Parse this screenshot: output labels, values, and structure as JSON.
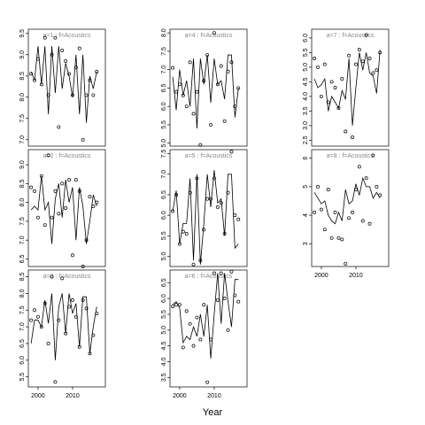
{
  "xlabel": "Year",
  "chart_data": [
    {
      "type": "line",
      "title": "a=1 : f=Acoustics",
      "x": [
        1998,
        1999,
        2000,
        2001,
        2002,
        2003,
        2004,
        2005,
        2006,
        2007,
        2008,
        2009,
        2010,
        2011,
        2012,
        2013,
        2014,
        2015,
        2016,
        2017
      ],
      "xlim": [
        1997.2,
        2019.5
      ],
      "ylim": [
        6.85,
        9.6
      ],
      "yticks": [
        {
          "value": 7,
          "label": "7.0"
        },
        7.5,
        {
          "value": 8,
          "label": "8.0"
        },
        8.5,
        {
          "value": 9,
          "label": "9.0"
        },
        9.5
      ],
      "series": [
        {
          "style": "points",
          "color": "#000000",
          "values": [
            8.55,
            8.4,
            8.9,
            8.3,
            9.4,
            8.05,
            9.0,
            9.4,
            7.3,
            9.1,
            8.85,
            8.55,
            8.05,
            8.7,
            9.15,
            7.0,
            8.05,
            8.4,
            8.05,
            8.6
          ]
        },
        {
          "style": "line",
          "color": "#000000",
          "values": [
            8.6,
            8.4,
            9.2,
            8.3,
            9.2,
            7.6,
            9.2,
            8.1,
            9.2,
            8.2,
            8.8,
            8.5,
            8.0,
            9.0,
            7.6,
            9.0,
            7.4,
            8.5,
            8.2,
            8.6
          ]
        }
      ]
    },
    {
      "type": "line",
      "title": "a=4 : f=Acoustics",
      "x": [
        1998,
        1999,
        2000,
        2001,
        2002,
        2003,
        2004,
        2005,
        2006,
        2007,
        2008,
        2009,
        2010,
        2011,
        2012,
        2013,
        2014,
        2015,
        2016,
        2017
      ],
      "xlim": [
        1997.2,
        2019.5
      ],
      "ylim": [
        4.92,
        8.1
      ],
      "yticks": [
        {
          "value": 5,
          "label": "5.0"
        },
        5.5,
        {
          "value": 6,
          "label": "6.0"
        },
        6.5,
        {
          "value": 7,
          "label": "7.0"
        },
        7.5,
        {
          "value": 8,
          "label": "8.0"
        }
      ],
      "series": [
        {
          "style": "points",
          "color": "#000000",
          "values": [
            7.05,
            6.4,
            6.6,
            6.3,
            6.0,
            7.2,
            5.8,
            6.4,
            4.95,
            6.7,
            7.4,
            5.5,
            8.0,
            6.6,
            7.1,
            5.6,
            6.95,
            7.2,
            6.0,
            6.5
          ]
        },
        {
          "style": "line",
          "color": "#000000",
          "values": [
            6.8,
            5.9,
            7.0,
            6.3,
            6.7,
            6.0,
            7.3,
            5.4,
            7.3,
            6.6,
            7.4,
            6.1,
            7.3,
            6.6,
            6.7,
            6.2,
            7.4,
            7.4,
            5.7,
            6.5
          ]
        }
      ]
    },
    {
      "type": "line",
      "title": "a=7 : f=Acoustics",
      "x": [
        1998,
        1999,
        2000,
        2001,
        2002,
        2003,
        2004,
        2005,
        2006,
        2007,
        2008,
        2009,
        2010,
        2011,
        2012,
        2013,
        2014,
        2015,
        2016,
        2017
      ],
      "xlim": [
        1997.2,
        2019.5
      ],
      "ylim": [
        2.3,
        6.3
      ],
      "yticks": [
        2.5,
        {
          "value": 3,
          "label": "3.0"
        },
        3.5,
        {
          "value": 4,
          "label": "4.0"
        },
        4.5,
        {
          "value": 5,
          "label": "5.0"
        },
        5.5,
        {
          "value": 6,
          "label": "6.0"
        }
      ],
      "series": [
        {
          "style": "points",
          "color": "#000000",
          "values": [
            5.3,
            5.0,
            4.0,
            5.1,
            3.8,
            4.5,
            4.3,
            3.6,
            4.6,
            2.8,
            5.4,
            2.6,
            5.1,
            5.6,
            5.2,
            6.1,
            5.3,
            4.8,
            4.9,
            5.5
          ]
        },
        {
          "style": "line",
          "color": "#000000",
          "values": [
            4.6,
            4.3,
            4.4,
            4.6,
            3.5,
            4.0,
            3.8,
            3.6,
            4.2,
            3.9,
            5.3,
            3.0,
            4.3,
            5.5,
            4.9,
            5.5,
            4.8,
            4.7,
            4.1,
            5.6
          ]
        }
      ]
    },
    {
      "type": "line",
      "title": "a=2 : f=Acoustics",
      "x": [
        1998,
        1999,
        2000,
        2001,
        2002,
        2003,
        2004,
        2005,
        2006,
        2007,
        2008,
        2009,
        2010,
        2011,
        2012,
        2013,
        2014,
        2015,
        2016,
        2017
      ],
      "xlim": [
        1997.2,
        2019.5
      ],
      "ylim": [
        6.3,
        9.4
      ],
      "yticks": [
        6.5,
        {
          "value": 7,
          "label": "7.0"
        },
        7.5,
        {
          "value": 8,
          "label": "8.0"
        },
        8.5,
        {
          "value": 9,
          "label": "9.0"
        }
      ],
      "series": [
        {
          "style": "points",
          "color": "#000000",
          "values": [
            8.4,
            8.3,
            7.6,
            8.7,
            7.4,
            9.25,
            7.6,
            8.3,
            7.7,
            8.5,
            7.85,
            8.6,
            6.6,
            8.6,
            8.3,
            6.3,
            7.0,
            8.15,
            7.9,
            8.0
          ]
        },
        {
          "style": "line",
          "color": "#000000",
          "values": [
            7.8,
            7.9,
            7.8,
            8.7,
            7.8,
            8.0,
            6.9,
            8.1,
            8.5,
            7.6,
            8.6,
            8.0,
            8.4,
            7.0,
            8.4,
            7.9,
            6.9,
            7.5,
            8.2,
            7.9
          ]
        }
      ]
    },
    {
      "type": "line",
      "title": "a=5 : f=Acoustics",
      "x": [
        1998,
        1999,
        2000,
        2001,
        2002,
        2003,
        2004,
        2005,
        2006,
        2007,
        2008,
        2009,
        2010,
        2011,
        2012,
        2013,
        2014,
        2015,
        2016,
        2017
      ],
      "xlim": [
        1997.2,
        2019.5
      ],
      "ylim": [
        4.75,
        7.6
      ],
      "yticks": [
        {
          "value": 5,
          "label": "5.0"
        },
        5.5,
        {
          "value": 6,
          "label": "6.0"
        },
        6.5,
        {
          "value": 7,
          "label": "7.0"
        },
        7.5
      ],
      "series": [
        {
          "style": "points",
          "color": "#000000",
          "values": [
            6.1,
            6.5,
            5.3,
            5.6,
            5.55,
            6.55,
            4.8,
            6.9,
            4.9,
            5.65,
            6.4,
            6.4,
            6.9,
            6.2,
            6.3,
            5.55,
            6.55,
            7.55,
            6.0,
            5.9
          ]
        },
        {
          "style": "line",
          "color": "#000000",
          "values": [
            6.1,
            6.6,
            5.3,
            5.8,
            5.8,
            6.9,
            4.9,
            7.0,
            4.8,
            5.8,
            7.0,
            6.2,
            7.1,
            6.3,
            6.4,
            5.5,
            7.0,
            7.0,
            5.2,
            5.3
          ]
        }
      ]
    },
    {
      "type": "line",
      "title": "a=8 : f=Acoustics",
      "x": [
        1998,
        1999,
        2000,
        2001,
        2002,
        2003,
        2004,
        2005,
        2006,
        2007,
        2008,
        2009,
        2010,
        2011,
        2012,
        2013,
        2014,
        2015,
        2016,
        2017
      ],
      "xlim": [
        1997.2,
        2019.5
      ],
      "ylim": [
        2.2,
        6.3
      ],
      "xticks": [
        2000,
        2010
      ],
      "yticks": [
        3,
        4,
        5,
        6
      ],
      "series": [
        {
          "style": "points",
          "color": "#000000",
          "values": [
            4.1,
            5.0,
            4.2,
            3.5,
            4.9,
            3.2,
            4.1,
            3.2,
            3.15,
            2.3,
            3.9,
            4.1,
            4.9,
            5.7,
            3.8,
            5.3,
            3.7,
            6.1,
            5.0,
            4.7
          ]
        },
        {
          "style": "line",
          "color": "#000000",
          "values": [
            4.8,
            4.6,
            4.4,
            4.5,
            4.0,
            3.8,
            3.7,
            4.1,
            3.8,
            4.9,
            4.4,
            4.5,
            5.1,
            4.7,
            5.3,
            5.0,
            5.0,
            4.6,
            4.8,
            4.6
          ]
        }
      ]
    },
    {
      "type": "line",
      "title": "a=3 : f=Acoustics",
      "x": [
        1998,
        1999,
        2000,
        2001,
        2002,
        2003,
        2004,
        2005,
        2006,
        2007,
        2008,
        2009,
        2010,
        2011,
        2012,
        2013,
        2014,
        2015,
        2016,
        2017
      ],
      "xlim": [
        1997.2,
        2019.5
      ],
      "ylim": [
        5.2,
        8.7
      ],
      "xticks": [
        2000,
        2010
      ],
      "yticks": [
        5.5,
        {
          "value": 6,
          "label": "6.0"
        },
        6.5,
        {
          "value": 7,
          "label": "7.0"
        },
        7.5,
        {
          "value": 8,
          "label": "8.0"
        },
        8.5
      ],
      "series": [
        {
          "style": "points",
          "color": "#000000",
          "values": [
            7.2,
            7.5,
            7.3,
            7.0,
            7.7,
            6.5,
            8.5,
            5.35,
            7.2,
            8.45,
            6.8,
            7.6,
            7.8,
            7.3,
            6.4,
            7.8,
            7.55,
            6.2,
            6.75,
            7.4
          ]
        },
        {
          "style": "line",
          "color": "#000000",
          "values": [
            6.5,
            7.2,
            7.2,
            7.0,
            7.8,
            7.1,
            8.0,
            6.0,
            7.6,
            8.0,
            6.8,
            8.0,
            7.4,
            7.7,
            6.4,
            7.9,
            7.9,
            6.2,
            7.0,
            7.6
          ]
        }
      ]
    },
    {
      "type": "line",
      "title": "a=6 : f=Acoustics",
      "x": [
        1998,
        1999,
        2000,
        2001,
        2002,
        2003,
        2004,
        2005,
        2006,
        2007,
        2008,
        2009,
        2010,
        2011,
        2012,
        2013,
        2014,
        2015,
        2016,
        2017
      ],
      "xlim": [
        1997.2,
        2019.5
      ],
      "ylim": [
        3.2,
        6.9
      ],
      "xticks": [
        2000,
        2010
      ],
      "yticks": [
        3.5,
        {
          "value": 4,
          "label": "4.0"
        },
        4.5,
        {
          "value": 5,
          "label": "5.0"
        },
        5.5,
        {
          "value": 6,
          "label": "6.0"
        },
        6.5
      ],
      "series": [
        {
          "style": "points",
          "color": "#000000",
          "values": [
            5.75,
            5.8,
            5.8,
            4.45,
            5.6,
            5.2,
            4.5,
            5.4,
            4.7,
            5.8,
            3.35,
            4.7,
            6.8,
            5.95,
            6.8,
            6.0,
            5.0,
            6.85,
            6.1,
            5.9
          ]
        },
        {
          "style": "line",
          "color": "#000000",
          "values": [
            5.8,
            5.9,
            5.7,
            4.6,
            4.8,
            4.7,
            5.1,
            4.8,
            5.5,
            4.8,
            5.8,
            4.1,
            5.5,
            6.8,
            5.2,
            6.8,
            5.9,
            5.1,
            6.6,
            6.6
          ]
        }
      ]
    }
  ]
}
